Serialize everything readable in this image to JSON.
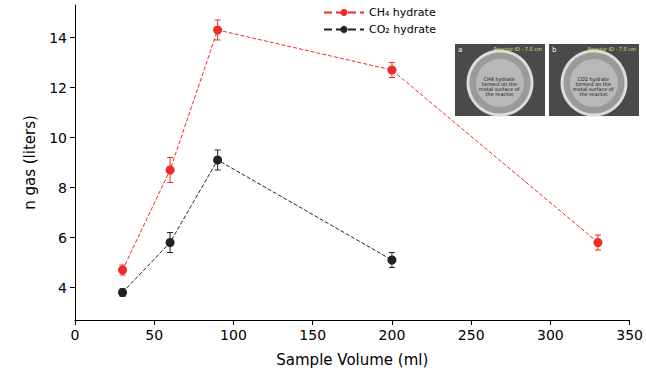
{
  "chart_data": {
    "type": "line",
    "x_label": "Sample Volume (ml)",
    "y_label": "n gas (liters)",
    "xlim": [
      0,
      350
    ],
    "xticks": [
      0,
      50,
      100,
      150,
      200,
      250,
      300,
      350
    ],
    "ylim": [
      2.7,
      15.3
    ],
    "yticks": [
      4,
      6,
      8,
      10,
      12,
      14
    ],
    "grid": false,
    "legend": "top",
    "series": [
      {
        "name": "CH₄ hydrate",
        "color": "#ee2b24",
        "marker": "circle",
        "line_style": "dashed",
        "x": [
          30,
          60,
          90,
          200,
          330
        ],
        "values": [
          4.7,
          8.7,
          14.3,
          12.7,
          5.8
        ],
        "errors": [
          0.2,
          0.5,
          0.4,
          0.3,
          0.3
        ]
      },
      {
        "name": "CO₂ hydrate",
        "color": "#222222",
        "marker": "circle",
        "line_style": "dashed",
        "x": [
          30,
          60,
          90,
          200
        ],
        "values": [
          3.8,
          5.8,
          9.1,
          5.1
        ],
        "errors": [
          0.15,
          0.4,
          0.4,
          0.3
        ]
      }
    ],
    "annotations": [
      {
        "panel": "a",
        "header": "Reactor ID - 7.5 cm",
        "text": "CH4 hydrate formed on the metal surface of the reactor."
      },
      {
        "panel": "b",
        "header": "Reactor ID - 7.5 cm",
        "text": "CO2 hydrate formed on the metal surface of the reactor."
      }
    ]
  }
}
